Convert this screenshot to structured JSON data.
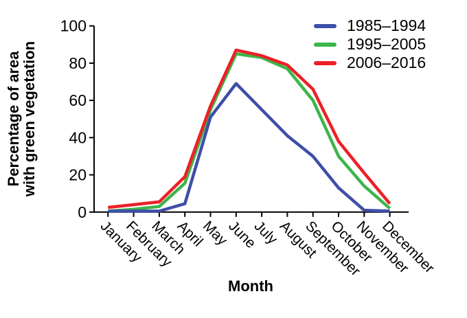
{
  "figure": {
    "ylabel_line1": "Percentage of area",
    "ylabel_line2": "with green vegetation",
    "xlabel": "Month",
    "background": "#ffffff",
    "axis_color": "#000000"
  },
  "chart_data": {
    "type": "line",
    "title": "",
    "xlabel": "Month",
    "ylabel": "Percentage of area with green vegetation",
    "categories": [
      "January",
      "February",
      "March",
      "April",
      "May",
      "June",
      "July",
      "August",
      "September",
      "October",
      "November",
      "December"
    ],
    "yticks": [
      0,
      20,
      40,
      60,
      80,
      100
    ],
    "ylim": [
      0,
      100
    ],
    "grid": false,
    "legend_position": "top-right",
    "series": [
      {
        "name": "1985–1994",
        "color": "#3e4fa8",
        "values": [
          0.5,
          0.5,
          0.5,
          4.5,
          51,
          69,
          55,
          41,
          30,
          13,
          1,
          0.5
        ]
      },
      {
        "name": "1995–2005",
        "color": "#3cb54a",
        "values": [
          0.5,
          1.5,
          3,
          15.5,
          55,
          85,
          83,
          77,
          60,
          30,
          14,
          2
        ]
      },
      {
        "name": "2006–2016",
        "color": "#ec2027",
        "values": [
          2.5,
          4,
          5.5,
          19,
          57,
          87,
          84,
          79,
          66,
          38,
          21,
          4.5
        ]
      }
    ]
  }
}
